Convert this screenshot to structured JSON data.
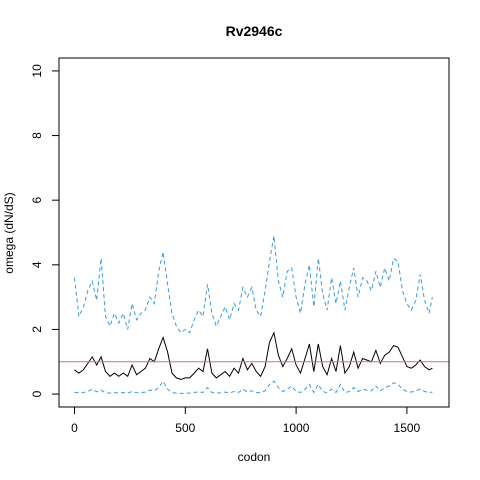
{
  "chart_data": {
    "type": "line",
    "title": "Rv2946c",
    "xlabel": "codon",
    "ylabel": "omega (dN/dS)",
    "xlim": [
      -70,
      1690
    ],
    "ylim": [
      -0.4,
      10.4
    ],
    "x_ticks": [
      0,
      500,
      1000,
      1500
    ],
    "y_ticks": [
      0,
      2,
      4,
      6,
      8,
      10
    ],
    "grid": false,
    "legend": "none",
    "reference_line": {
      "y": 1,
      "color": "#c36fb0"
    },
    "colors": {
      "estimate": "#000000",
      "bounds": "#3a9ad9"
    },
    "series": [
      {
        "role": "upper-bound",
        "style": "dashed",
        "color": "#3a9ad9",
        "x": [
          0,
          20,
          40,
          60,
          80,
          100,
          120,
          140,
          160,
          180,
          200,
          220,
          240,
          260,
          280,
          300,
          320,
          340,
          360,
          380,
          400,
          420,
          440,
          460,
          480,
          500,
          520,
          540,
          560,
          580,
          600,
          620,
          640,
          660,
          680,
          700,
          720,
          740,
          760,
          780,
          800,
          820,
          840,
          860,
          880,
          900,
          920,
          940,
          960,
          980,
          1000,
          1020,
          1040,
          1060,
          1080,
          1100,
          1120,
          1140,
          1160,
          1180,
          1200,
          1220,
          1240,
          1260,
          1280,
          1300,
          1320,
          1340,
          1360,
          1380,
          1400,
          1420,
          1440,
          1460,
          1480,
          1500,
          1520,
          1540,
          1560,
          1580,
          1600,
          1615
        ],
        "values": [
          3.6,
          2.4,
          2.7,
          3.2,
          3.5,
          2.9,
          4.2,
          2.4,
          2.1,
          2.5,
          2.2,
          2.5,
          2.0,
          2.8,
          2.3,
          2.5,
          2.6,
          3.0,
          2.8,
          3.8,
          4.4,
          3.4,
          2.5,
          2.1,
          1.9,
          2.0,
          1.9,
          2.3,
          2.6,
          2.4,
          3.4,
          2.5,
          2.1,
          2.4,
          2.7,
          2.3,
          2.8,
          2.6,
          3.3,
          3.0,
          3.3,
          2.6,
          2.4,
          3.2,
          4.1,
          4.9,
          3.5,
          3.0,
          3.8,
          3.9,
          3.0,
          2.5,
          3.4,
          4.0,
          2.7,
          4.2,
          3.1,
          2.6,
          3.6,
          2.8,
          3.5,
          2.6,
          3.3,
          3.9,
          3.0,
          3.6,
          3.5,
          3.2,
          3.8,
          3.3,
          3.9,
          3.5,
          4.2,
          4.1,
          3.2,
          2.8,
          2.6,
          2.9,
          3.7,
          2.9,
          2.5,
          3.0
        ]
      },
      {
        "role": "estimate",
        "style": "solid",
        "color": "#000000",
        "x": [
          0,
          20,
          40,
          60,
          80,
          100,
          120,
          140,
          160,
          180,
          200,
          220,
          240,
          260,
          280,
          300,
          320,
          340,
          360,
          380,
          400,
          420,
          440,
          460,
          480,
          500,
          520,
          540,
          560,
          580,
          600,
          620,
          640,
          660,
          680,
          700,
          720,
          740,
          760,
          780,
          800,
          820,
          840,
          860,
          880,
          900,
          920,
          940,
          960,
          980,
          1000,
          1020,
          1040,
          1060,
          1080,
          1100,
          1120,
          1140,
          1160,
          1180,
          1200,
          1220,
          1240,
          1260,
          1280,
          1300,
          1320,
          1340,
          1360,
          1380,
          1400,
          1420,
          1440,
          1460,
          1480,
          1500,
          1520,
          1540,
          1560,
          1580,
          1600,
          1615
        ],
        "values": [
          0.75,
          0.65,
          0.75,
          0.95,
          1.15,
          0.9,
          1.15,
          0.7,
          0.55,
          0.65,
          0.55,
          0.65,
          0.55,
          0.9,
          0.6,
          0.7,
          0.8,
          1.1,
          1.0,
          1.4,
          1.75,
          1.3,
          0.65,
          0.5,
          0.45,
          0.5,
          0.5,
          0.65,
          0.8,
          0.7,
          1.4,
          0.65,
          0.5,
          0.6,
          0.7,
          0.55,
          0.8,
          0.65,
          1.1,
          0.75,
          0.95,
          0.7,
          0.55,
          0.85,
          1.6,
          1.9,
          1.2,
          0.85,
          1.1,
          1.4,
          0.9,
          0.65,
          1.1,
          1.55,
          0.7,
          1.55,
          0.85,
          0.6,
          1.1,
          0.7,
          1.5,
          0.65,
          0.85,
          1.3,
          0.8,
          1.1,
          1.05,
          1.0,
          1.35,
          0.95,
          1.2,
          1.3,
          1.5,
          1.45,
          1.15,
          0.85,
          0.8,
          0.9,
          1.05,
          0.85,
          0.75,
          0.8
        ]
      },
      {
        "role": "lower-bound",
        "style": "dashed",
        "color": "#3a9ad9",
        "x": [
          0,
          20,
          40,
          60,
          80,
          100,
          120,
          140,
          160,
          180,
          200,
          220,
          240,
          260,
          280,
          300,
          320,
          340,
          360,
          380,
          400,
          420,
          440,
          460,
          480,
          500,
          520,
          540,
          560,
          580,
          600,
          620,
          640,
          660,
          680,
          700,
          720,
          740,
          760,
          780,
          800,
          820,
          840,
          860,
          880,
          900,
          920,
          940,
          960,
          980,
          1000,
          1020,
          1040,
          1060,
          1080,
          1100,
          1120,
          1140,
          1160,
          1180,
          1200,
          1220,
          1240,
          1260,
          1280,
          1300,
          1320,
          1340,
          1360,
          1380,
          1400,
          1420,
          1440,
          1460,
          1480,
          1500,
          1520,
          1540,
          1560,
          1580,
          1600,
          1615
        ],
        "values": [
          0.05,
          0.04,
          0.05,
          0.08,
          0.15,
          0.07,
          0.12,
          0.04,
          0.03,
          0.05,
          0.03,
          0.05,
          0.03,
          0.08,
          0.04,
          0.05,
          0.06,
          0.12,
          0.1,
          0.2,
          0.4,
          0.15,
          0.05,
          0.03,
          0.02,
          0.03,
          0.03,
          0.05,
          0.07,
          0.05,
          0.2,
          0.05,
          0.03,
          0.04,
          0.06,
          0.04,
          0.08,
          0.05,
          0.15,
          0.06,
          0.1,
          0.05,
          0.04,
          0.1,
          0.3,
          0.4,
          0.2,
          0.08,
          0.15,
          0.25,
          0.08,
          0.05,
          0.15,
          0.3,
          0.05,
          0.3,
          0.08,
          0.04,
          0.15,
          0.05,
          0.3,
          0.05,
          0.08,
          0.2,
          0.08,
          0.15,
          0.12,
          0.1,
          0.25,
          0.1,
          0.2,
          0.25,
          0.35,
          0.3,
          0.15,
          0.08,
          0.06,
          0.1,
          0.15,
          0.08,
          0.05,
          0.06
        ]
      }
    ]
  }
}
